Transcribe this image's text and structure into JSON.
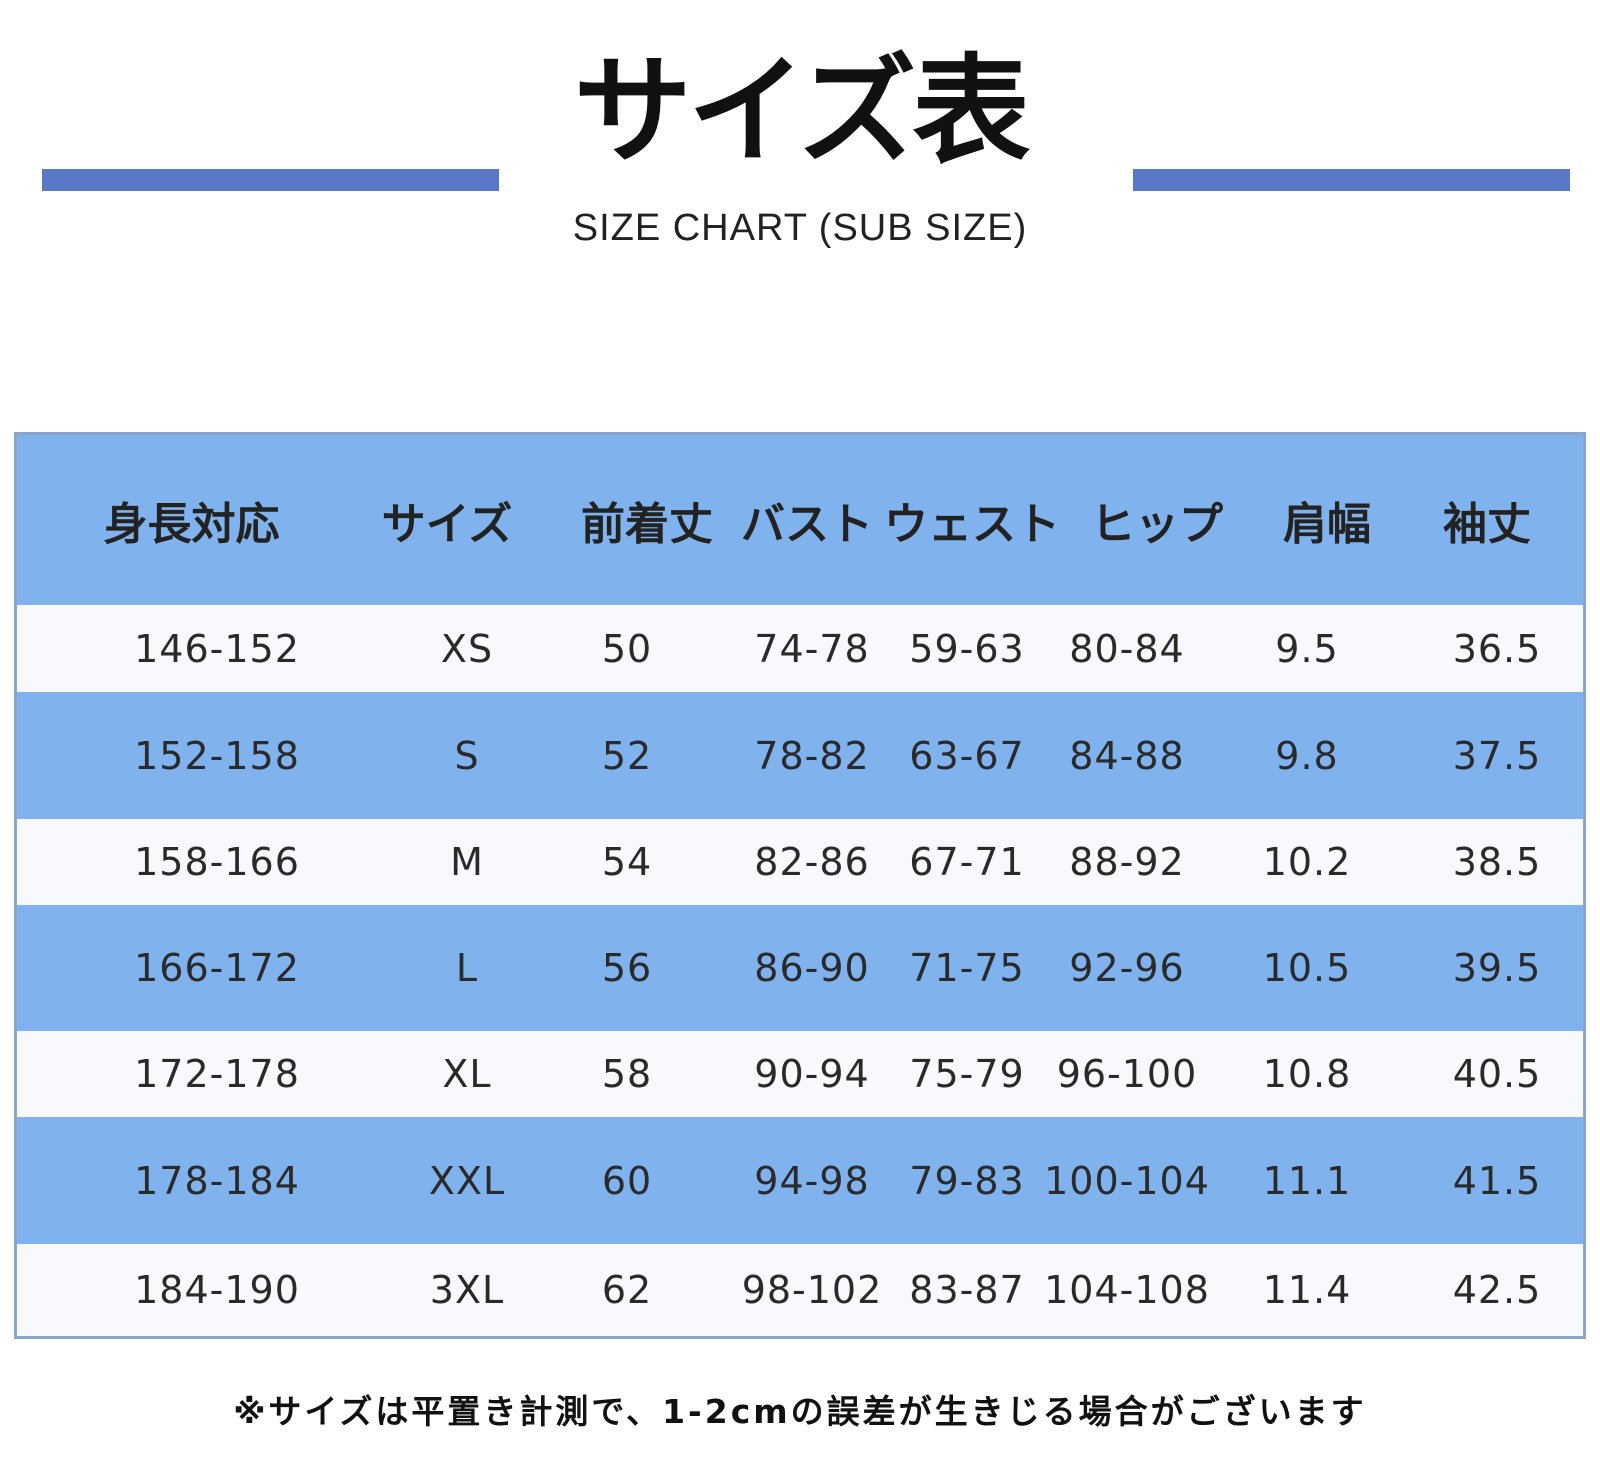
{
  "title": "サイズ表",
  "subtitle": "SIZE CHART (SUB SIZE)",
  "accent_color": "#5a78c8",
  "row_color": "#80b3ee",
  "table": {
    "columns": [
      "身長対応",
      "サイズ",
      "前着丈",
      "バスト",
      "ウェスト",
      "ヒップ",
      "肩幅",
      "袖丈"
    ],
    "rows": [
      [
        "146-152",
        "XS",
        "50",
        "74-78",
        "59-63",
        "80-84",
        "9.5",
        "36.5"
      ],
      [
        "152-158",
        "S",
        "52",
        "78-82",
        "63-67",
        "84-88",
        "9.8",
        "37.5"
      ],
      [
        "158-166",
        "M",
        "54",
        "82-86",
        "67-71",
        "88-92",
        "10.2",
        "38.5"
      ],
      [
        "166-172",
        "L",
        "56",
        "86-90",
        "71-75",
        "92-96",
        "10.5",
        "39.5"
      ],
      [
        "172-178",
        "XL",
        "58",
        "90-94",
        "75-79",
        "96-100",
        "10.8",
        "40.5"
      ],
      [
        "178-184",
        "XXL",
        "60",
        "94-98",
        "79-83",
        "100-104",
        "11.1",
        "41.5"
      ],
      [
        "184-190",
        "3XL",
        "62",
        "98-102",
        "83-87",
        "104-108",
        "11.4",
        "42.5"
      ]
    ]
  },
  "note": "※サイズは平置き計測で、1-2cmの誤差が生きじる場合がございます"
}
